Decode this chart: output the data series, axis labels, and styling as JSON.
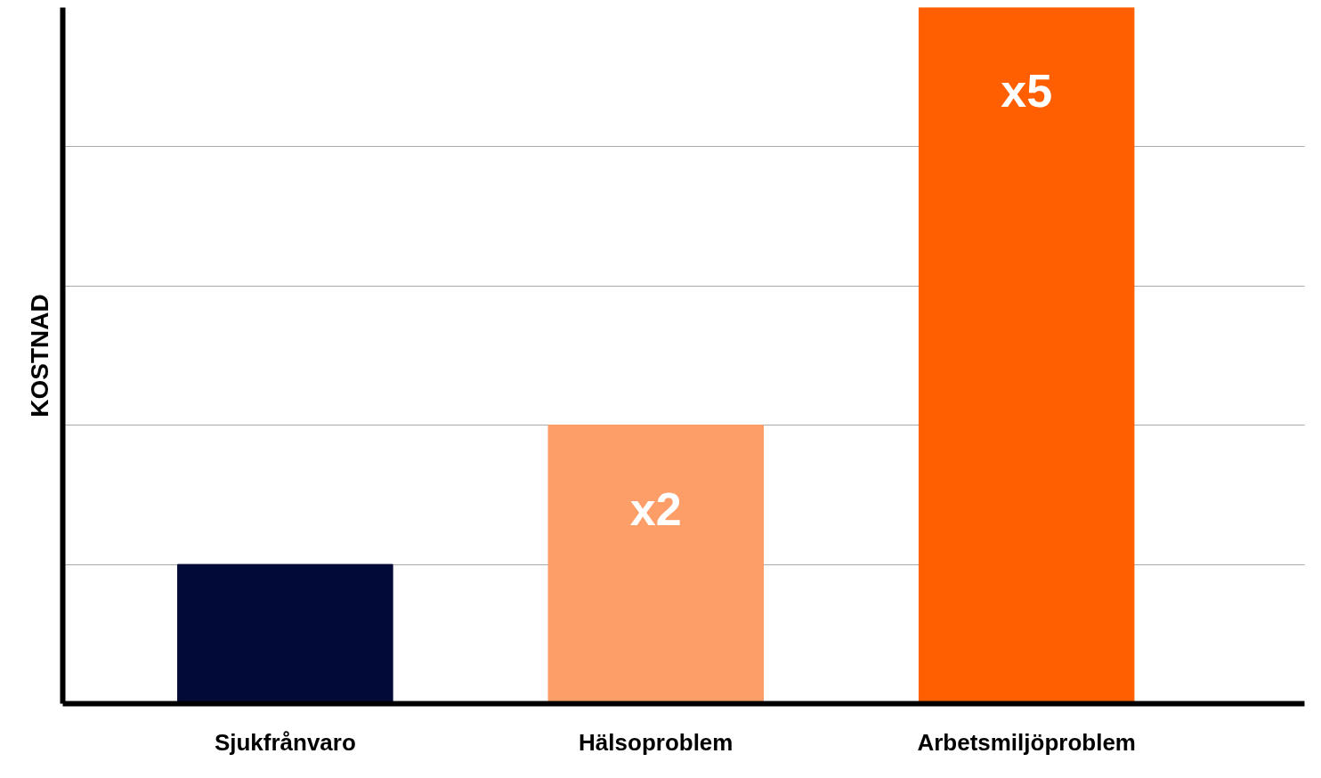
{
  "chart_data": {
    "type": "bar",
    "ylabel": "KOSTNAD",
    "grid": "y",
    "categories": [
      "Sjukfrånvaro",
      "Hälsoproblem",
      "Arbetsmiljöproblem"
    ],
    "values": [
      1,
      2,
      5
    ],
    "ylim": [
      0,
      5
    ],
    "colors": [
      "#020b38",
      "#fd9e68",
      "#ff5f00"
    ],
    "value_labels": [
      null,
      "x2",
      "x5"
    ]
  }
}
